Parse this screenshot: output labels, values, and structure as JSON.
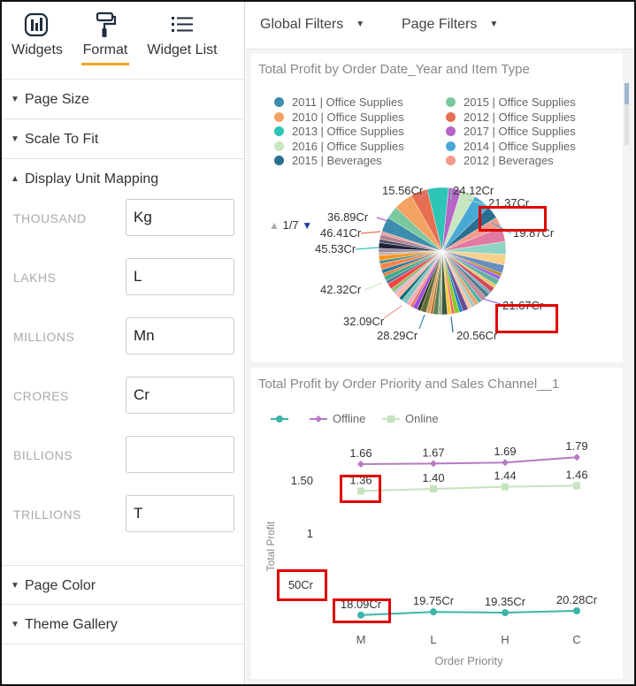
{
  "left_panel": {
    "tabs": [
      {
        "label": "Widgets",
        "icon": "widgets-icon"
      },
      {
        "label": "Format",
        "icon": "paint-roller-icon",
        "active": true
      },
      {
        "label": "Widget List",
        "icon": "list-icon"
      }
    ],
    "sections": {
      "page_size": "Page Size",
      "scale_to_fit": "Scale To Fit",
      "display_unit_mapping": "Display Unit Mapping",
      "page_color": "Page Color",
      "theme_gallery": "Theme Gallery"
    },
    "unit_mapping": [
      {
        "label": "THOUSAND",
        "value": "Kg"
      },
      {
        "label": "LAKHS",
        "value": "L"
      },
      {
        "label": "MILLIONS",
        "value": "Mn"
      },
      {
        "label": "CRORES",
        "value": "Cr"
      },
      {
        "label": "BILLIONS",
        "value": ""
      },
      {
        "label": "TRILLIONS",
        "value": "T"
      }
    ]
  },
  "filter_bar": {
    "global_filters": "Global Filters",
    "page_filters": "Page Filters"
  },
  "pie_widget": {
    "title": "Total Profit by Order Date_Year and Item Type",
    "legend": [
      {
        "label": "2011 | Office Supplies",
        "color": "#3c8dad"
      },
      {
        "label": "2015 | Office Supplies",
        "color": "#7cc89e"
      },
      {
        "label": "2010 | Office Supplies",
        "color": "#f4a261"
      },
      {
        "label": "2012 | Office Supplies",
        "color": "#e76f51"
      },
      {
        "label": "2013 | Office Supplies",
        "color": "#2ec4b6"
      },
      {
        "label": "2017 | Office Supplies",
        "color": "#b565c7"
      },
      {
        "label": "2016 | Office Supplies",
        "color": "#c8e6c0"
      },
      {
        "label": "2014 | Office Supplies",
        "color": "#49a9d6"
      },
      {
        "label": "2015 | Beverages",
        "color": "#2a6f8f"
      },
      {
        "label": "2012 | Beverages",
        "color": "#f29b8c"
      }
    ],
    "pager": "1/7",
    "slice_labels": [
      "15.56Cr",
      "24.12Cr",
      "21.37Cr",
      "19.87Cr",
      "36.89Cr",
      "46.41Cr",
      "45.53Cr",
      "42.32Cr",
      "21.67Cr",
      "32.09Cr",
      "28.29Cr",
      "20.56Cr"
    ]
  },
  "line_widget": {
    "title": "Total Profit by Order Priority and Sales Channel__1"
  },
  "chart_data": [
    {
      "type": "pie",
      "title": "Total Profit by Order Date_Year and Item Type",
      "data_labels": [
        "15.56Cr",
        "24.12Cr",
        "21.37Cr",
        "19.87Cr",
        "36.89Cr",
        "46.41Cr",
        "45.53Cr",
        "42.32Cr",
        "21.67Cr",
        "32.09Cr",
        "28.29Cr",
        "20.56Cr"
      ],
      "legend": [
        "2011 | Office Supplies",
        "2015 | Office Supplies",
        "2010 | Office Supplies",
        "2012 | Office Supplies",
        "2013 | Office Supplies",
        "2017 | Office Supplies",
        "2016 | Office Supplies",
        "2014 | Office Supplies",
        "2015 | Beverages",
        "2012 | Beverages"
      ]
    },
    {
      "type": "line",
      "title": "Total Profit by Order Priority and Sales Channel__1",
      "xlabel": "Order Priority",
      "ylabel": "Total Profit",
      "categories": [
        "M",
        "L",
        "H",
        "C"
      ],
      "y_ticks": [
        "50Cr",
        "1",
        "1.50"
      ],
      "legend_placement": "top-left",
      "series": [
        {
          "name": "",
          "color": "#3bb5a8",
          "values": [
            18.09,
            19.75,
            19.35,
            20.28
          ],
          "labels": [
            "18.09Cr",
            "19.75Cr",
            "19.35Cr",
            "20.28Cr"
          ]
        },
        {
          "name": "Offline",
          "color": "#b77ac4",
          "values": [
            1.66,
            1.67,
            1.69,
            1.79
          ],
          "labels": [
            "1.66",
            "1.67",
            "1.69",
            "1.79"
          ]
        },
        {
          "name": "Online",
          "color": "#c5e3bd",
          "values": [
            1.36,
            1.4,
            1.44,
            1.46
          ],
          "labels": [
            "1.36",
            "1.40",
            "1.44",
            "1.46"
          ]
        }
      ]
    }
  ]
}
